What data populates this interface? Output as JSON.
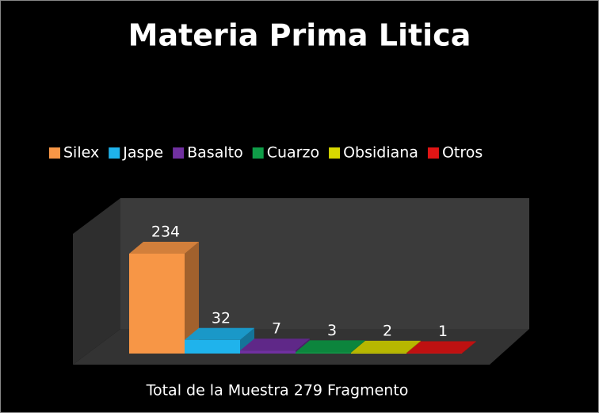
{
  "chart_data": {
    "type": "bar",
    "title": "Materia Prima Litica",
    "x_label": "Total de la Muestra 279 Fragmento",
    "series": [
      {
        "name": "Silex",
        "color": "#f79646",
        "values": [
          234
        ]
      },
      {
        "name": "Jaspe",
        "color": "#1fb3ec",
        "values": [
          32
        ]
      },
      {
        "name": "Basalto",
        "color": "#7030a0",
        "values": [
          7
        ]
      },
      {
        "name": "Cuarzo",
        "color": "#0f9d48",
        "values": [
          3
        ]
      },
      {
        "name": "Obsidiana",
        "color": "#d8d800",
        "values": [
          2
        ]
      },
      {
        "name": "Otros",
        "color": "#e01515",
        "values": [
          1
        ]
      }
    ],
    "legend": "top"
  }
}
